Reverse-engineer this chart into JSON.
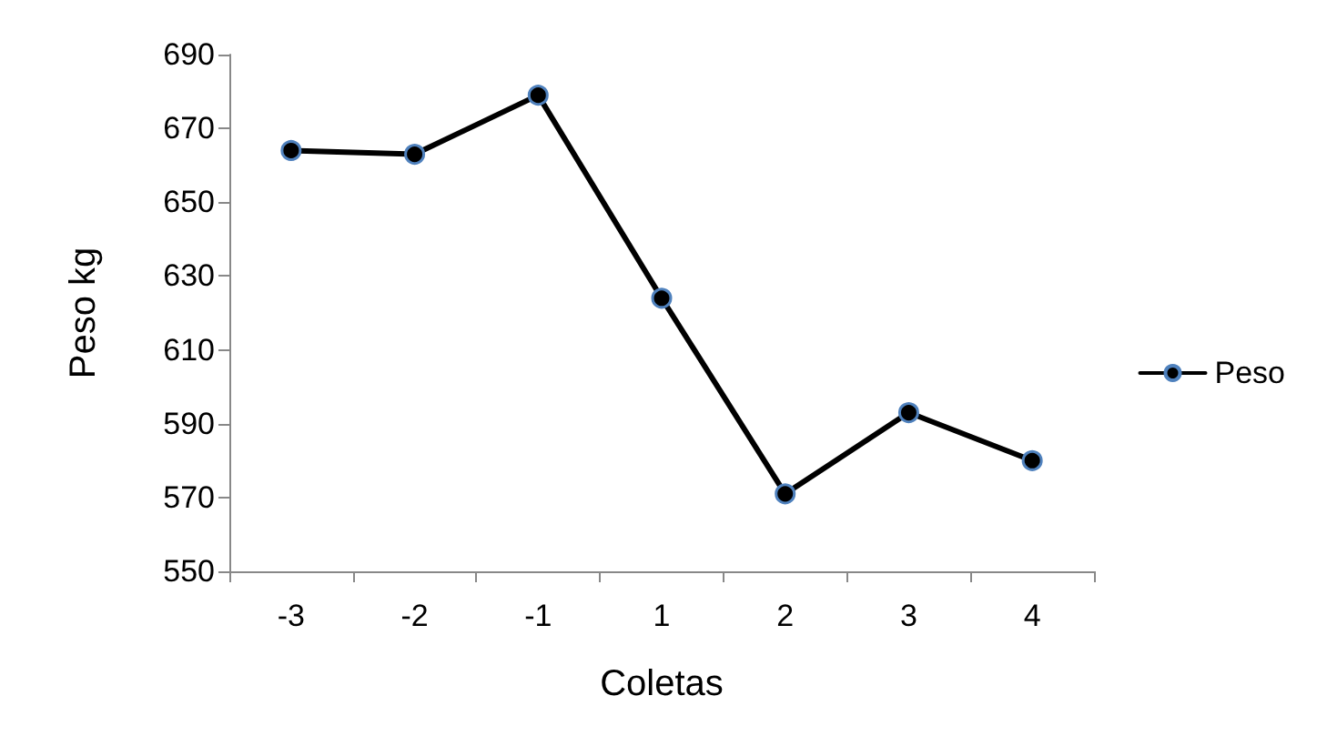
{
  "chart_data": {
    "type": "line",
    "xlabel": "Coletas",
    "ylabel": "Peso kg",
    "categories": [
      "-3",
      "-2",
      "-1",
      "1",
      "2",
      "3",
      "4"
    ],
    "series": [
      {
        "name": "Peso",
        "color": "#000000",
        "values": [
          664,
          663,
          679,
          624,
          571,
          593,
          580
        ]
      }
    ],
    "ylim": [
      550,
      690
    ],
    "yticks": [
      550,
      570,
      590,
      610,
      630,
      650,
      670,
      690
    ],
    "grid": false,
    "legend": "right",
    "marker": "circle",
    "line_style": "solid"
  }
}
